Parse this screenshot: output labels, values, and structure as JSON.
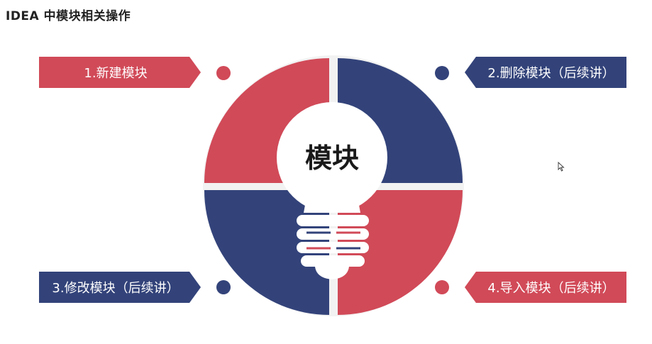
{
  "slide": {
    "title": "IDEA 中模块相关操作"
  },
  "diagram": {
    "center_label": "模块",
    "items": [
      {
        "label": "1.新建模块",
        "color": "#d14a58"
      },
      {
        "label": "2.删除模块（后续讲）",
        "color": "#33437a"
      },
      {
        "label": "3.修改模块（后续讲）",
        "color": "#33437a"
      },
      {
        "label": "4.导入模块（后续讲）",
        "color": "#d14a58"
      }
    ]
  },
  "colors": {
    "red": "#d14a58",
    "navy": "#33437a",
    "bulb_stripe_red": "#d14a58",
    "bulb_stripe_navy": "#33437a"
  }
}
